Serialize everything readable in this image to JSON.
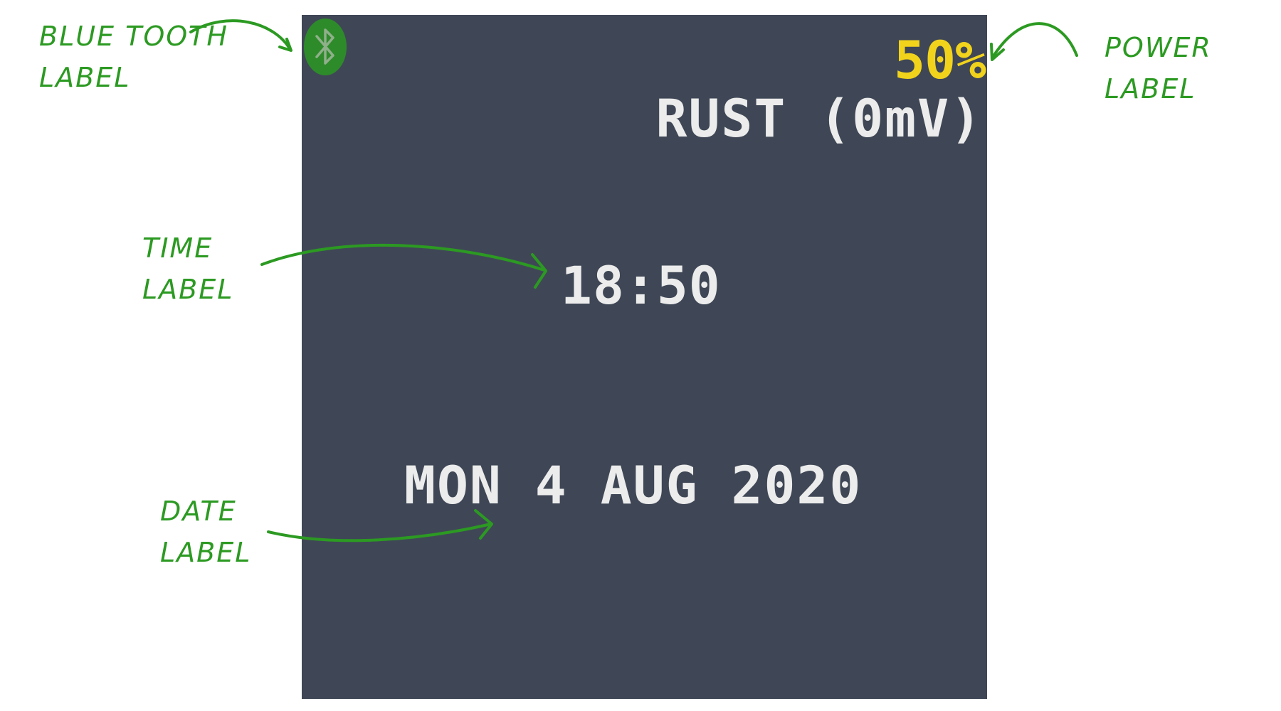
{
  "colors": {
    "screen_background": "#3f4756",
    "text_white": "#ececec",
    "power_yellow": "#f1d31c",
    "bluetooth_green": "#2e8b2a",
    "bluetooth_symbol": "#8fb08a",
    "annotation_green": "#2c9a22"
  },
  "screen": {
    "bluetooth_icon": "bluetooth-icon",
    "power": "50%",
    "rust": "RUST (0mV)",
    "time": "18:50",
    "date": "MON 4 AUG 2020"
  },
  "annotations": {
    "bluetooth": "Blue tooth\nLabel",
    "power": "Power\nLabel",
    "time": "Time\nLabel",
    "date": "Date\nLabel"
  }
}
